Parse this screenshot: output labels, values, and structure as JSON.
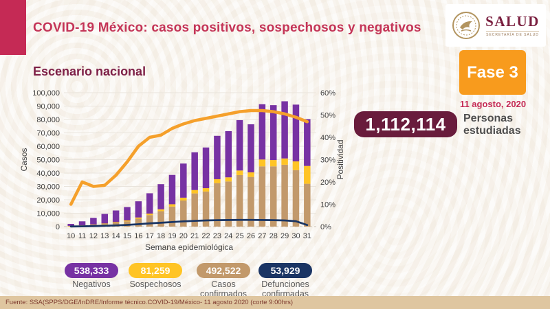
{
  "header": {
    "title": "COVID-19 México: casos positivos, sospechosos y negativos",
    "subtitle": "Escenario nacional"
  },
  "logo": {
    "name": "SALUD",
    "sub": "SECRETARÍA DE SALUD"
  },
  "phase": {
    "label": "Fase 3",
    "date": "11 agosto, 2020"
  },
  "studied": {
    "value": "1,112,114",
    "label": "Personas estudiadas"
  },
  "badges": [
    {
      "value": "538,333",
      "label": "Negativos",
      "color": "#7732A3"
    },
    {
      "value": "81,259",
      "label": "Sospechosos",
      "color": "#FFC425"
    },
    {
      "value": "492,522",
      "label": "Casos confirmados",
      "color": "#C2996B"
    },
    {
      "value": "53,929",
      "label": "Defunciones confirmadas",
      "color": "#1B3564"
    }
  ],
  "footer": {
    "source": "Fuente: SSA(SPPS/DGE/InDRE/Informe técnico.COVID-19/México- 11 agosto 2020 (corte 9:00hrs)"
  },
  "chart_data": {
    "type": "bar",
    "subtype": "stacked-bars-with-lines",
    "categories": [
      "10",
      "11",
      "12",
      "13",
      "14",
      "15",
      "16",
      "17",
      "18",
      "19",
      "20",
      "21",
      "22",
      "23",
      "24",
      "25",
      "26",
      "27",
      "28",
      "29",
      "30",
      "31"
    ],
    "series": [
      {
        "name": "Casos confirmados",
        "type": "bar",
        "color": "#C2996B",
        "values": [
          400,
          700,
          1200,
          1900,
          2800,
          3900,
          5900,
          8600,
          11500,
          15000,
          19500,
          24800,
          26200,
          32500,
          33700,
          38500,
          37100,
          45000,
          45000,
          46200,
          42200,
          32000
        ]
      },
      {
        "name": "Sospechosos",
        "type": "bar",
        "color": "#FFC425",
        "values": [
          150,
          250,
          350,
          450,
          550,
          700,
          900,
          1100,
          1400,
          1700,
          2100,
          2500,
          2500,
          2900,
          3100,
          3400,
          3400,
          5100,
          4700,
          4700,
          6500,
          13300
        ]
      },
      {
        "name": "Negativos",
        "type": "bar",
        "color": "#7732A3",
        "values": [
          1500,
          3000,
          5000,
          7100,
          8700,
          10000,
          12100,
          15200,
          18800,
          21900,
          25500,
          28200,
          30400,
          32400,
          34500,
          37600,
          35900,
          41300,
          41000,
          42700,
          42400,
          35000
        ]
      },
      {
        "name": "Defunciones confirmadas",
        "type": "line",
        "axis": "left",
        "color": "#1A3563",
        "values": [
          100,
          200,
          350,
          600,
          900,
          1300,
          1800,
          2400,
          2900,
          3400,
          3900,
          4300,
          4600,
          4800,
          4900,
          5000,
          5000,
          4900,
          4800,
          4600,
          4000,
          1200
        ]
      },
      {
        "name": "Positividad",
        "type": "line",
        "axis": "right",
        "color": "#F5A02B",
        "values": [
          10,
          20,
          18,
          18.5,
          23,
          29,
          36,
          40,
          41,
          44,
          46,
          47.5,
          48.5,
          49.5,
          50.5,
          51.5,
          52,
          52,
          51.5,
          50.5,
          49,
          47
        ]
      }
    ],
    "title": "Escenario nacional",
    "xlabel": "Semana epidemiológica",
    "ylabel_left": "Casos",
    "ylabel_right": "Positividad",
    "ylim_left": [
      0,
      100000
    ],
    "ylim_right": [
      0,
      60
    ],
    "ytick_labels_left": [
      "0",
      "10,000",
      "20,000",
      "30,000",
      "40,000",
      "50,000",
      "60,000",
      "70,000",
      "80,000",
      "90,000",
      "100,000"
    ],
    "ytick_labels_right": [
      "0%",
      "10%",
      "20%",
      "30%",
      "40%",
      "50%",
      "60%"
    ],
    "grid": true,
    "legend_position": "bottom-badges"
  }
}
